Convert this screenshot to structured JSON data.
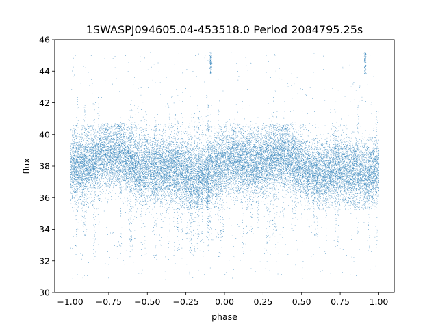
{
  "chart_data": {
    "type": "scatter",
    "title": "1SWASPJ094605.04-453518.0 Period 2084795.25s",
    "xlabel": "phase",
    "ylabel": "flux",
    "xlim": [
      -1.1,
      1.1
    ],
    "ylim": [
      30,
      46
    ],
    "xticks": [
      "−1.00",
      "−0.75",
      "−0.50",
      "−0.25",
      "0.00",
      "0.25",
      "0.50",
      "0.75",
      "1.00"
    ],
    "yticks": [
      "30",
      "32",
      "34",
      "36",
      "38",
      "40",
      "42",
      "44",
      "46"
    ],
    "grid": false,
    "legend": "none",
    "point_color": "#1f77b4",
    "x_range": [
      -1.0,
      1.0
    ],
    "band_center": 38.0,
    "band_lower": 35.5,
    "band_upper": 40.2,
    "outlier_range": [
      30.8,
      45.2
    ],
    "spike_phases": [
      -0.09,
      0.91
    ],
    "spike_range": [
      43.8,
      45.2
    ]
  }
}
